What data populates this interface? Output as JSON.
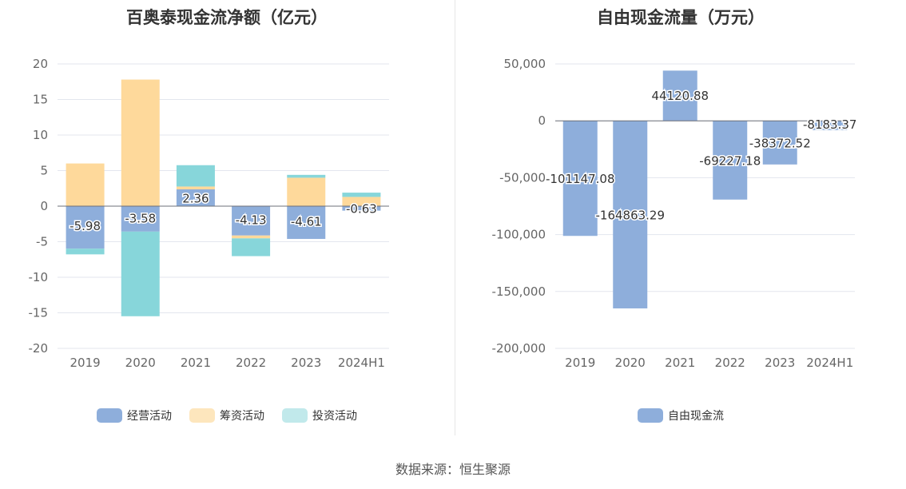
{
  "charts": {
    "left_title": "百奥泰现金流净额（亿元）",
    "right_title": "自由现金流量（万元）"
  },
  "footer": "数据来源：恒生聚源",
  "colors": {
    "operating": "#8eaedb",
    "financing": "#fed99b",
    "investing": "#87d6da",
    "fcf": "#8eaedb"
  },
  "chart_data": [
    {
      "type": "bar",
      "stacked": true,
      "title": "百奥泰现金流净额（亿元）",
      "categories": [
        "2019",
        "2020",
        "2021",
        "2022",
        "2023",
        "2024H1"
      ],
      "series": [
        {
          "name": "经营活动",
          "values": [
            -5.98,
            -3.58,
            2.36,
            -4.13,
            -4.61,
            -0.63
          ],
          "labels": [
            "-5.98",
            "-3.58",
            "2.36",
            "-4.13",
            "-4.61",
            "-0.63"
          ]
        },
        {
          "name": "筹资活动",
          "values": [
            6.0,
            17.8,
            0.4,
            -0.4,
            4.0,
            1.3
          ]
        },
        {
          "name": "投资活动",
          "values": [
            -0.8,
            -11.9,
            3.0,
            -2.5,
            0.4,
            0.6
          ]
        }
      ],
      "yticks": [
        "20",
        "15",
        "10",
        "5",
        "0",
        "-5",
        "-10",
        "-15",
        "-20"
      ],
      "ylim": [
        -20,
        20
      ]
    },
    {
      "type": "bar",
      "title": "自由现金流量（万元）",
      "categories": [
        "2019",
        "2020",
        "2021",
        "2022",
        "2023",
        "2024H1"
      ],
      "series": [
        {
          "name": "自由现金流",
          "values": [
            -101147.08,
            -164863.29,
            44120.88,
            -69227.18,
            -38372.52,
            -8183.37
          ],
          "labels": [
            "-101147.08",
            "-164863.29",
            "44120.88",
            "-69227.18",
            "-38372.52",
            "-8183.37"
          ]
        }
      ],
      "yticks": [
        "50,000",
        "0",
        "-50,000",
        "-100,000",
        "-150,000",
        "-200,000"
      ],
      "ylim": [
        -200000,
        50000
      ]
    }
  ]
}
